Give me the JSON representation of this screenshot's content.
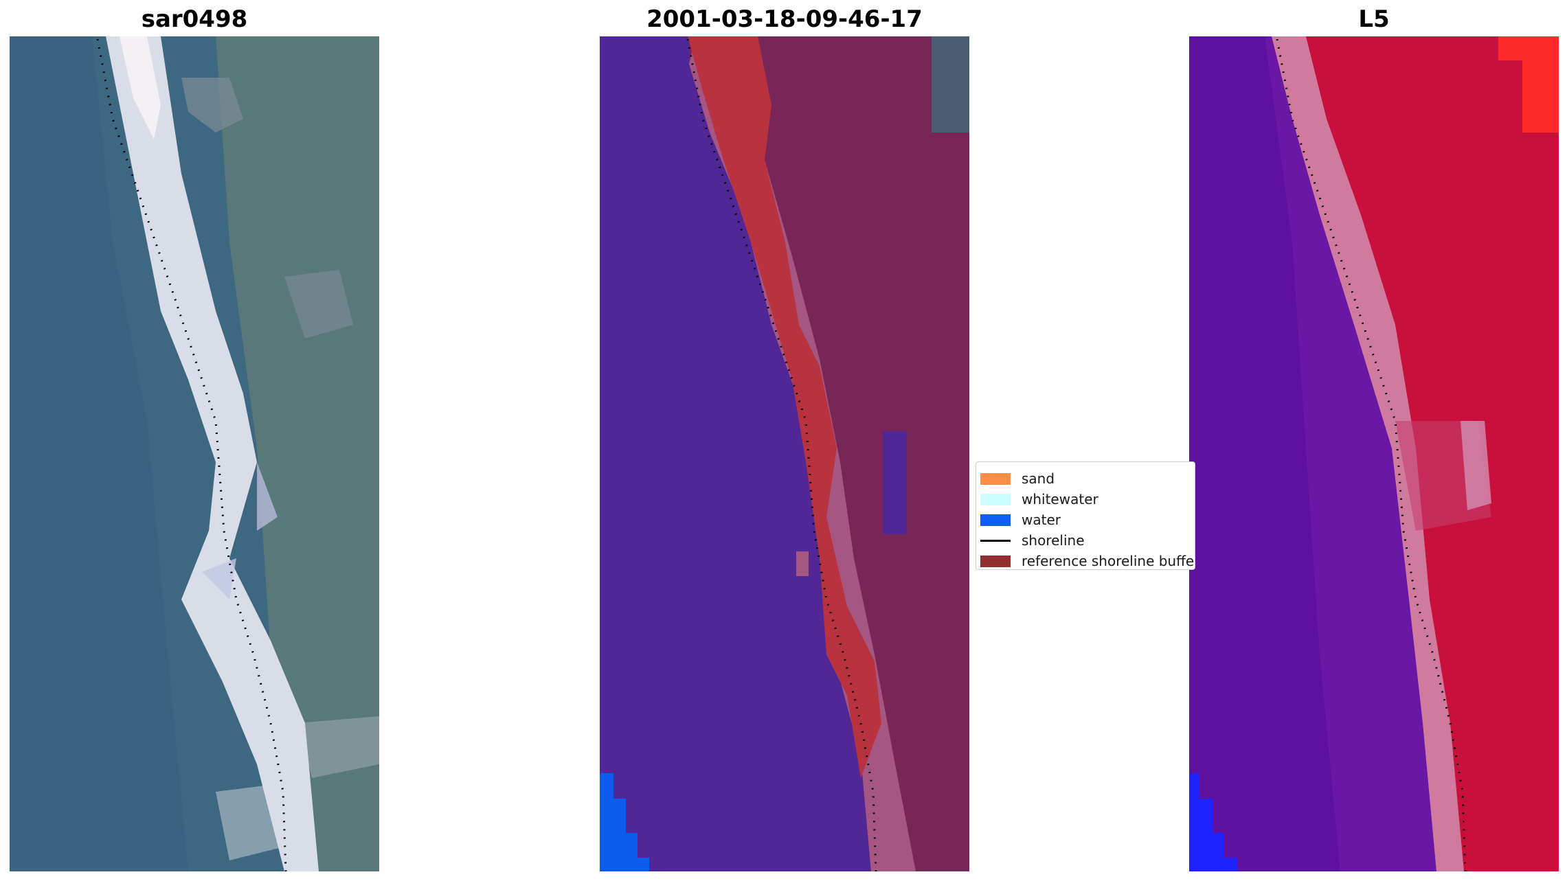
{
  "panels": [
    {
      "title": "sar0498"
    },
    {
      "title": "2001-03-18-09-46-17"
    },
    {
      "title": "L5"
    }
  ],
  "legend": {
    "items": [
      {
        "label": "sand",
        "color": "#f98e44",
        "kind": "patch"
      },
      {
        "label": "whitewater",
        "color": "#ccffff",
        "kind": "patch"
      },
      {
        "label": "water",
        "color": "#0f5ef8",
        "kind": "patch"
      },
      {
        "label": "shoreline",
        "color": "#000000",
        "kind": "line"
      },
      {
        "label": "reference shoreline buffer",
        "color": "#912e30",
        "kind": "patch"
      }
    ]
  },
  "colors": {
    "rgb_water": "#3d6683",
    "rgb_beach": "#dfe3ec",
    "rgb_land": "#52737a",
    "class_water": "#512797",
    "class_land": "#772657",
    "class_beach": "#a65683",
    "class_buffer": "#b8323f",
    "class_water_pure": "#0c5cf0",
    "index_water": "#6a17a6",
    "index_land": "#c9103d",
    "index_beach": "#d07a9e",
    "index_corner": "#fe2b2b",
    "index_water_pure": "#1e22ff"
  }
}
